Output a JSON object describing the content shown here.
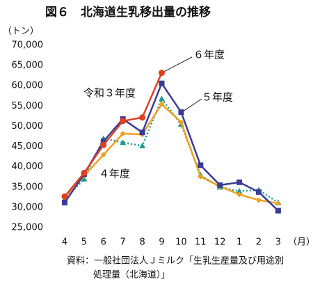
{
  "chart_data": {
    "type": "line",
    "title": "図６　北海道生乳移出量の推移",
    "y_label": "（トン）",
    "x_label": "（月）",
    "source": [
      "資料：一般社団法人Ｊミルク「生乳生産量及び用途別",
      "処理量（北海道）」"
    ],
    "categories": [
      "4",
      "5",
      "6",
      "7",
      "8",
      "9",
      "10",
      "11",
      "12",
      "1",
      "2",
      "3"
    ],
    "series": [
      {
        "name": "令和３年度",
        "color": "#1a9a8a",
        "values": [
          32000,
          37000,
          47000,
          46000,
          45200,
          56800,
          50500,
          38000,
          35000,
          34000,
          34300,
          31200
        ]
      },
      {
        "name": "４年度",
        "color": "#f0a020",
        "values": [
          32500,
          37800,
          43000,
          48200,
          48000,
          55500,
          51000,
          37600,
          35200,
          33200,
          31800,
          31000
        ]
      },
      {
        "name": "５年度",
        "color": "#3b3b9a",
        "values": [
          31200,
          38200,
          46300,
          51800,
          48500,
          60600,
          53500,
          40400,
          35500,
          36200,
          33800,
          29200
        ]
      },
      {
        "name": "６年度",
        "color": "#e04020",
        "values": [
          32700,
          38500,
          45400,
          51300,
          52200,
          63200,
          null,
          null,
          null,
          null,
          null,
          null
        ]
      }
    ],
    "ylim": [
      25000,
      70000
    ],
    "yticks": [
      {
        "value": 25000,
        "label": "25,000"
      },
      {
        "value": 30000,
        "label": "30,000"
      },
      {
        "value": 35000,
        "label": "35,000"
      },
      {
        "value": 40000,
        "label": "40,000"
      },
      {
        "value": 45000,
        "label": "45,000"
      },
      {
        "value": 50000,
        "label": "50,000"
      },
      {
        "value": 55000,
        "label": "55,000"
      },
      {
        "value": 60000,
        "label": "60,000"
      },
      {
        "value": 65000,
        "label": "65,000"
      },
      {
        "value": 70000,
        "label": "70,000"
      }
    ],
    "grid": false
  }
}
